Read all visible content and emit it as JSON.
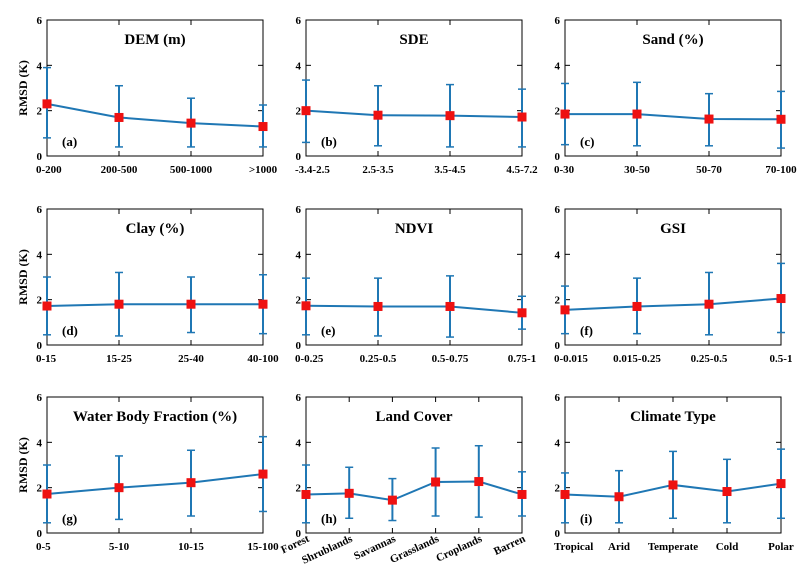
{
  "colors": {
    "line": "#1f77b4",
    "marker": "#ee1111",
    "axis": "#000000"
  },
  "chart_data": [
    {
      "type": "line",
      "label": "(a)",
      "title": "DEM (m)",
      "ylabel": "RMSD (K)",
      "ylim": [
        0,
        6
      ],
      "yticks": [
        0,
        2,
        4,
        6
      ],
      "categories": [
        "0-200",
        "200-500",
        "500-1000",
        ">1000"
      ],
      "values": [
        2.3,
        1.7,
        1.45,
        1.3
      ],
      "lower": [
        0.8,
        0.4,
        0.4,
        0.4
      ],
      "upper": [
        3.9,
        3.1,
        2.55,
        2.25
      ]
    },
    {
      "type": "line",
      "label": "(b)",
      "title": "SDE",
      "ylabel": "",
      "ylim": [
        0,
        6
      ],
      "yticks": [
        0,
        2,
        4,
        6
      ],
      "categories": [
        "-3.4-2.5",
        "2.5-3.5",
        "3.5-4.5",
        "4.5-7.2"
      ],
      "values": [
        2.0,
        1.8,
        1.78,
        1.72
      ],
      "lower": [
        0.6,
        0.45,
        0.4,
        0.4
      ],
      "upper": [
        3.35,
        3.1,
        3.15,
        2.95
      ]
    },
    {
      "type": "line",
      "label": "(c)",
      "title": "Sand (%)",
      "ylabel": "",
      "ylim": [
        0,
        6
      ],
      "yticks": [
        0,
        2,
        4,
        6
      ],
      "categories": [
        "0-30",
        "30-50",
        "50-70",
        "70-100"
      ],
      "values": [
        1.85,
        1.85,
        1.63,
        1.62
      ],
      "lower": [
        0.5,
        0.45,
        0.45,
        0.35
      ],
      "upper": [
        3.2,
        3.25,
        2.75,
        2.85
      ]
    },
    {
      "type": "line",
      "label": "(d)",
      "title": "Clay (%)",
      "ylabel": "RMSD (K)",
      "ylim": [
        0,
        6
      ],
      "yticks": [
        0,
        2,
        4,
        6
      ],
      "categories": [
        "0-15",
        "15-25",
        "25-40",
        "40-100"
      ],
      "values": [
        1.72,
        1.8,
        1.8,
        1.8
      ],
      "lower": [
        0.45,
        0.4,
        0.55,
        0.5
      ],
      "upper": [
        3.0,
        3.2,
        3.0,
        3.1
      ]
    },
    {
      "type": "line",
      "label": "(e)",
      "title": "NDVI",
      "ylabel": "",
      "ylim": [
        0,
        6
      ],
      "yticks": [
        0,
        2,
        4,
        6
      ],
      "categories": [
        "0-0.25",
        "0.25-0.5",
        "0.5-0.75",
        "0.75-1"
      ],
      "values": [
        1.73,
        1.7,
        1.7,
        1.42
      ],
      "lower": [
        0.45,
        0.4,
        0.35,
        0.7
      ],
      "upper": [
        2.95,
        2.95,
        3.05,
        2.15
      ]
    },
    {
      "type": "line",
      "label": "(f)",
      "title": "GSI",
      "ylabel": "",
      "ylim": [
        0,
        6
      ],
      "yticks": [
        0,
        2,
        4,
        6
      ],
      "categories": [
        "0-0.015",
        "0.015-0.25",
        "0.25-0.5",
        "0.5-1"
      ],
      "values": [
        1.55,
        1.7,
        1.8,
        2.05
      ],
      "lower": [
        0.5,
        0.5,
        0.45,
        0.55
      ],
      "upper": [
        2.6,
        2.95,
        3.2,
        3.6
      ]
    },
    {
      "type": "line",
      "label": "(g)",
      "title": "Water Body Fraction (%)",
      "ylabel": "RMSD (K)",
      "ylim": [
        0,
        6
      ],
      "yticks": [
        0,
        2,
        4,
        6
      ],
      "categories": [
        "0-5",
        "5-10",
        "10-15",
        "15-100"
      ],
      "values": [
        1.72,
        2.0,
        2.22,
        2.6
      ],
      "lower": [
        0.45,
        0.6,
        0.75,
        0.95
      ],
      "upper": [
        3.0,
        3.4,
        3.65,
        4.25
      ]
    },
    {
      "type": "line",
      "label": "(h)",
      "title": "Land Cover",
      "ylabel": "",
      "ylim": [
        0,
        6
      ],
      "yticks": [
        0,
        2,
        4,
        6
      ],
      "rotated_ticks": true,
      "categories": [
        "Forest",
        "Shrublands",
        "Savannas",
        "Grasslands",
        "Croplands",
        "Barren"
      ],
      "values": [
        1.7,
        1.75,
        1.45,
        2.25,
        2.27,
        1.7
      ],
      "lower": [
        0.45,
        0.65,
        0.55,
        0.75,
        0.7,
        0.75
      ],
      "upper": [
        3.0,
        2.9,
        2.4,
        3.75,
        3.85,
        2.7
      ]
    },
    {
      "type": "line",
      "label": "(i)",
      "title": "Climate Type",
      "ylabel": "",
      "ylim": [
        0,
        6
      ],
      "yticks": [
        0,
        2,
        4,
        6
      ],
      "categories": [
        "Tropical",
        "Arid",
        "Temperate",
        "Cold",
        "Polar"
      ],
      "values": [
        1.7,
        1.6,
        2.12,
        1.83,
        2.18
      ],
      "lower": [
        0.45,
        0.45,
        0.65,
        0.45,
        0.65
      ],
      "upper": [
        2.65,
        2.75,
        3.6,
        3.25,
        3.7
      ]
    }
  ]
}
